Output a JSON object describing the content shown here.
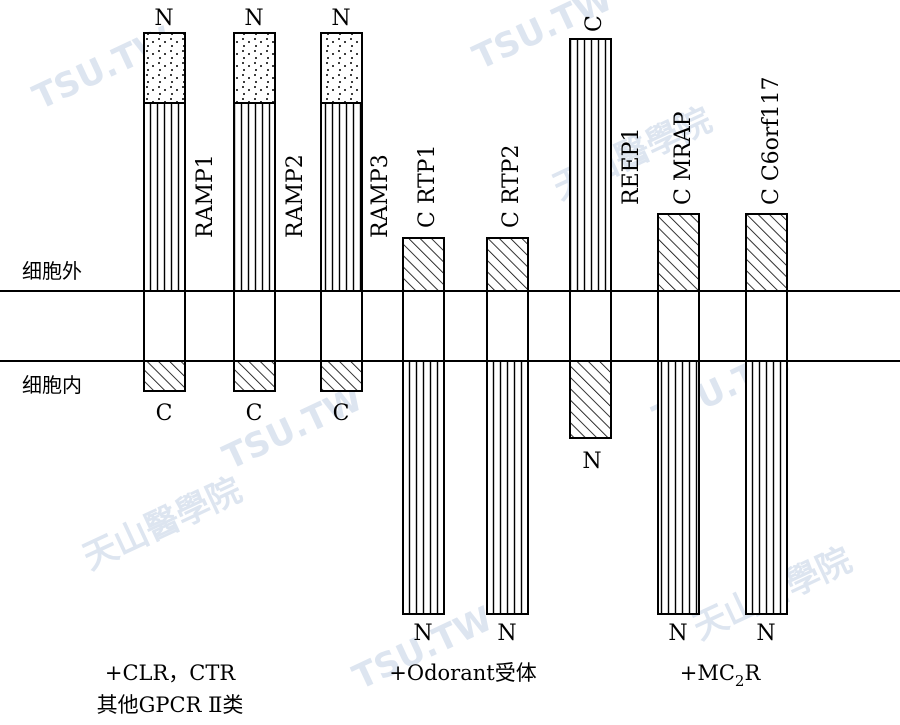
{
  "region_labels": {
    "extracellular": "细胞外",
    "intracellular": "细胞内"
  },
  "watermark": {
    "text_a": "TSU.TW",
    "text_b": "天山醫學院"
  },
  "proteins": [
    {
      "id": "ramp1",
      "name": "RAMP1",
      "top_terminal": "N",
      "bottom_terminal": "C"
    },
    {
      "id": "ramp2",
      "name": "RAMP2",
      "top_terminal": "N",
      "bottom_terminal": "C"
    },
    {
      "id": "ramp3",
      "name": "RAMP3",
      "top_terminal": "N",
      "bottom_terminal": "C"
    },
    {
      "id": "rtp1",
      "name": "C  RTP1",
      "top_terminal": "",
      "bottom_terminal": "N"
    },
    {
      "id": "rtp2",
      "name": "C  RTP2",
      "top_terminal": "",
      "bottom_terminal": "N"
    },
    {
      "id": "reep1",
      "name": "REEP1",
      "top_terminal": "C",
      "bottom_terminal": "N"
    },
    {
      "id": "mrap",
      "name": "C  MRAP",
      "top_terminal": "",
      "bottom_terminal": "N"
    },
    {
      "id": "c6orf117",
      "name": "C  C6orf117",
      "top_terminal": "",
      "bottom_terminal": "N"
    }
  ],
  "groups": {
    "g1_line1": "+CLR，CTR",
    "g1_line2": "其他GPCR Ⅱ类",
    "g2": "+Odorant受体",
    "g3_prefix": "+MC",
    "g3_sub": "2",
    "g3_suffix": "R"
  }
}
